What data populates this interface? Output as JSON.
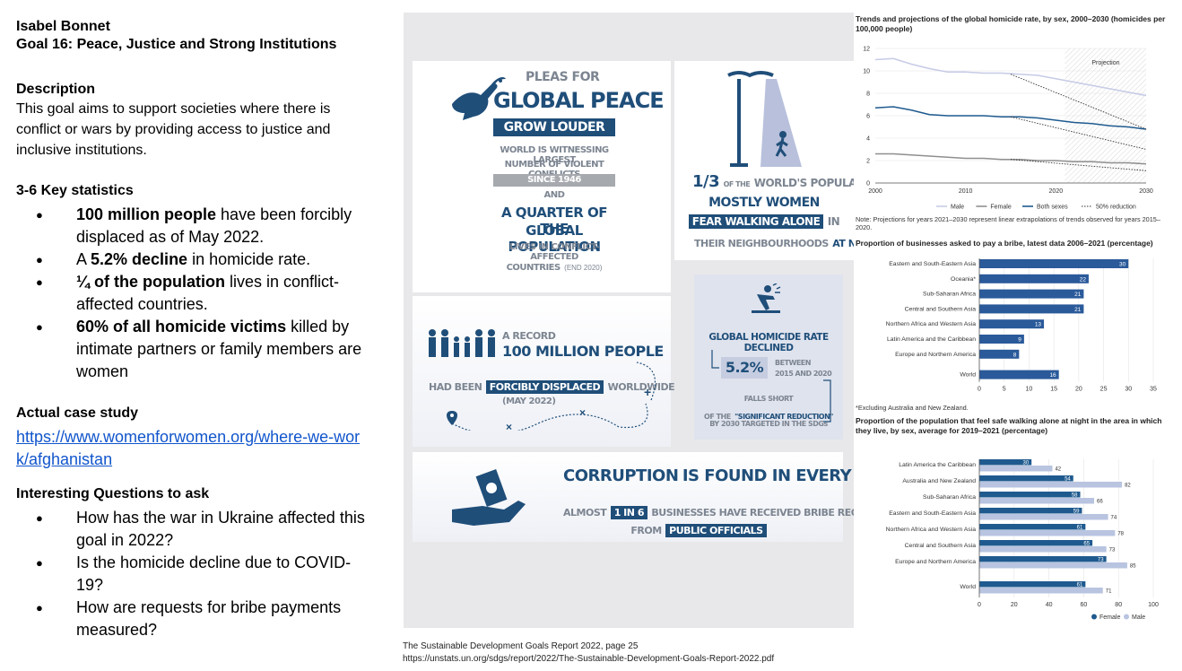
{
  "header": {
    "author": "Isabel Bonnet",
    "goal": "Goal 16: Peace, Justice and Strong Institutions"
  },
  "description": {
    "title": "Description",
    "text": "This goal aims to support societies where there is conflict or wars by providing access to justice and inclusive institutions."
  },
  "stats": {
    "title": "3-6 Key statistics",
    "items": [
      {
        "bold": "100 million people",
        "rest": " have been forcibly displaced as of May 2022."
      },
      {
        "pre": "A ",
        "bold": "5.2% decline",
        "rest": " in homicide rate."
      },
      {
        "bold": "¼ of the population",
        "rest": " lives in conflict-affected countries."
      },
      {
        "bold": "60% of all homicide victims",
        "rest": " killed by intimate partners or family members are women"
      }
    ]
  },
  "case_study": {
    "title": "Actual case study",
    "link": "https://www.womenforwomen.org/where-we-work/afghanistan"
  },
  "questions": {
    "title": "Interesting Questions to ask",
    "items": [
      "How has the war in Ukraine affected this goal in 2022?",
      "Is the homicide decline due to COVID-19?",
      "How are requests for bribe payments measured?"
    ]
  },
  "infographic": {
    "peace": {
      "line1": "PLEAS FOR",
      "line2": "GLOBAL PEACE",
      "line3": "GROW LOUDER",
      "line4": "WORLD IS WITNESSING LARGEST",
      "line5": "NUMBER OF VIOLENT CONFLICTS",
      "line6": "SINCE 1946",
      "line7": "AND",
      "line8": "A QUARTER OF THE",
      "line9": "GLOBAL POPULATION",
      "line10": "LIVES IN CONFLICT-AFFECTED",
      "line11": "COUNTRIES",
      "line11b": "(END 2020)"
    },
    "night": {
      "frac": "1/3",
      "of_the": "OF THE",
      "pop": "WORLD'S POPULATION",
      "mostly": "MOSTLY WOMEN",
      "fear": "FEAR WALKING ALONE",
      "in": "IN",
      "neigh": "THEIR NEIGHBOURHOODS",
      "at_night": "AT NIGHT"
    },
    "displaced": {
      "a_record": "A RECORD",
      "million": "100 MILLION PEOPLE",
      "had_been": "HAD BEEN",
      "forcibly": "FORCIBLY DISPLACED",
      "worldwide": "WORLDWIDE",
      "date": "(MAY 2022)"
    },
    "homicide": {
      "title": "GLOBAL HOMICIDE RATE DECLINED",
      "pct": "5.2%",
      "between": "BETWEEN",
      "years": "2015 AND 2020",
      "falls": "FALLS SHORT",
      "of_the": "OF THE",
      "sig": "\"SIGNIFICANT REDUCTION\"",
      "by2030": "BY 2030 TARGETED IN THE SDGs"
    },
    "corruption": {
      "word": "CORRUPTION",
      "rest": "IS FOUND IN EVERY REGION",
      "almost": "ALMOST",
      "one_in_six": "1 IN 6",
      "businesses": "BUSINESSES HAVE RECEIVED BRIBE REQUESTS",
      "from": "FROM",
      "officials": "PUBLIC OFFICIALS"
    }
  },
  "chart_data": [
    {
      "type": "line",
      "title": "Trends and projections of the global homicide rate, by sex, 2000–2030 (homicides per 100,000 people)",
      "x_ticks": [
        "2000",
        "2010",
        "2020",
        "2030"
      ],
      "y_ticks": [
        "0",
        "2",
        "4",
        "6",
        "8",
        "10",
        "12"
      ],
      "ylim": [
        0,
        12
      ],
      "xlim": [
        2000,
        2030
      ],
      "projection_label": "Projection",
      "series": [
        {
          "name": "Male",
          "color": "#c6cbe6",
          "x": [
            2000,
            2002,
            2004,
            2006,
            2008,
            2010,
            2012,
            2014,
            2016,
            2018,
            2020,
            2022,
            2024,
            2026,
            2028,
            2030
          ],
          "y": [
            11.0,
            11.1,
            10.6,
            10.2,
            9.9,
            9.9,
            9.8,
            9.8,
            9.7,
            9.6,
            9.3,
            9.0,
            8.7,
            8.4,
            8.1,
            7.8
          ]
        },
        {
          "name": "Female",
          "color": "#8f8f8f",
          "x": [
            2000,
            2002,
            2004,
            2006,
            2008,
            2010,
            2012,
            2014,
            2016,
            2018,
            2020,
            2022,
            2024,
            2026,
            2028,
            2030
          ],
          "y": [
            2.6,
            2.6,
            2.5,
            2.4,
            2.3,
            2.2,
            2.2,
            2.1,
            2.1,
            2.0,
            2.0,
            1.9,
            1.9,
            1.8,
            1.8,
            1.7
          ]
        },
        {
          "name": "Both sexes",
          "color": "#1f5a8f",
          "x": [
            2000,
            2002,
            2004,
            2006,
            2008,
            2010,
            2012,
            2014,
            2016,
            2018,
            2020,
            2022,
            2024,
            2026,
            2028,
            2030
          ],
          "y": [
            6.7,
            6.8,
            6.5,
            6.1,
            6.0,
            6.0,
            6.0,
            5.9,
            5.9,
            5.8,
            5.6,
            5.4,
            5.3,
            5.1,
            5.0,
            4.8
          ]
        },
        {
          "name": "50% reduction",
          "color": "#333333",
          "dashed": true,
          "segments": [
            {
              "x": [
                2015,
                2030
              ],
              "y": [
                9.7,
                4.8
              ]
            },
            {
              "x": [
                2015,
                2030
              ],
              "y": [
                5.9,
                3.0
              ]
            },
            {
              "x": [
                2015,
                2030
              ],
              "y": [
                2.1,
                1.1
              ]
            }
          ]
        }
      ],
      "note": "Note: Projections for years 2021–2030 represent linear extrapolations of trends observed for years 2015–2020."
    },
    {
      "type": "bar",
      "orientation": "horizontal",
      "title": "Proportion of businesses asked to pay a bribe, latest data 2006–2021 (percentage)",
      "categories": [
        "Eastern and South-Eastern Asia",
        "Oceania*",
        "Sub-Saharan Africa",
        "Central and Southern Asia",
        "Northern Africa and Western Asia",
        "Latin America and the Caribbean",
        "Europe and Northern America",
        "World"
      ],
      "values": [
        30,
        22,
        21,
        21,
        13,
        9,
        8,
        16
      ],
      "x_ticks": [
        "0",
        "5",
        "10",
        "15",
        "20",
        "25",
        "30",
        "35"
      ],
      "xlim": [
        0,
        35
      ],
      "color": "#2a5a9a",
      "note": "*Excluding Australia and New Zealand."
    },
    {
      "type": "bar",
      "orientation": "horizontal",
      "title": "Proportion of the population that feel safe walking alone at night in the area in which they live, by sex, average for 2019–2021 (percentage)",
      "categories": [
        "Latin America the Caribbean",
        "Australia and New Zealand",
        "Sub-Saharan Africa",
        "Eastern and South-Eastern Asia",
        "Northern Africa and Western Asia",
        "Central and Southern Asia",
        "Europe and Northern America",
        "World"
      ],
      "series": [
        {
          "name": "Female",
          "color": "#1f5a8f",
          "values": [
            30,
            54,
            58,
            59,
            61,
            65,
            73,
            61
          ]
        },
        {
          "name": "Male",
          "color": "#b8c4e0",
          "values": [
            42,
            82,
            66,
            74,
            78,
            73,
            85,
            71
          ]
        }
      ],
      "x_ticks": [
        "0",
        "20",
        "40",
        "60",
        "80",
        "100"
      ],
      "xlim": [
        0,
        100
      ]
    }
  ],
  "source": {
    "line1": "The Sustainable Development Goals Report 2022, page 25",
    "line2": "https://unstats.un.org/sdgs/report/2022/The-Sustainable-Development-Goals-Report-2022.pdf"
  }
}
